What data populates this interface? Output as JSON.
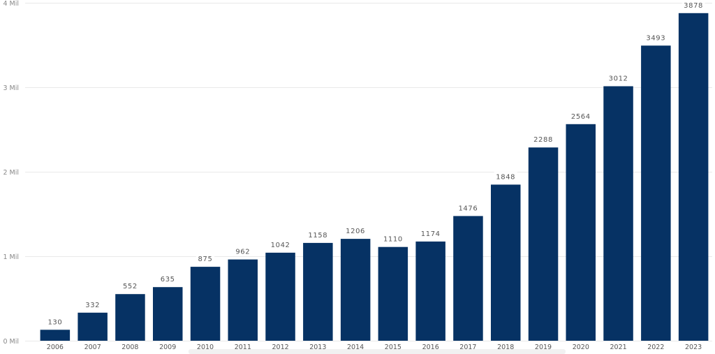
{
  "chart_data": {
    "type": "bar",
    "categories": [
      "2006",
      "2007",
      "2008",
      "2009",
      "2010",
      "2011",
      "2012",
      "2013",
      "2014",
      "2015",
      "2016",
      "2017",
      "2018",
      "2019",
      "2020",
      "2021",
      "2022",
      "2023"
    ],
    "values": [
      130,
      332,
      552,
      635,
      875,
      962,
      1042,
      1158,
      1206,
      1110,
      1174,
      1476,
      1848,
      2288,
      2564,
      3012,
      3493,
      3878
    ],
    "data_labels": [
      "130",
      "332",
      "552",
      "635",
      "875",
      "962",
      "1042",
      "1158",
      "1206",
      "1110",
      "1174",
      "1476",
      "1848",
      "2288",
      "2564",
      "3012",
      "3493",
      "3878"
    ],
    "yticks": [
      {
        "value": 0,
        "label": "0 Mil"
      },
      {
        "value": 1000,
        "label": "1 Mil"
      },
      {
        "value": 2000,
        "label": "2 Mil"
      },
      {
        "value": 3000,
        "label": "3 Mil"
      },
      {
        "value": 4000,
        "label": "4 Mil"
      }
    ],
    "ylim": [
      0,
      4000
    ],
    "title": "",
    "xlabel": "",
    "ylabel": "",
    "grid": true,
    "bar_color": "#063264"
  }
}
